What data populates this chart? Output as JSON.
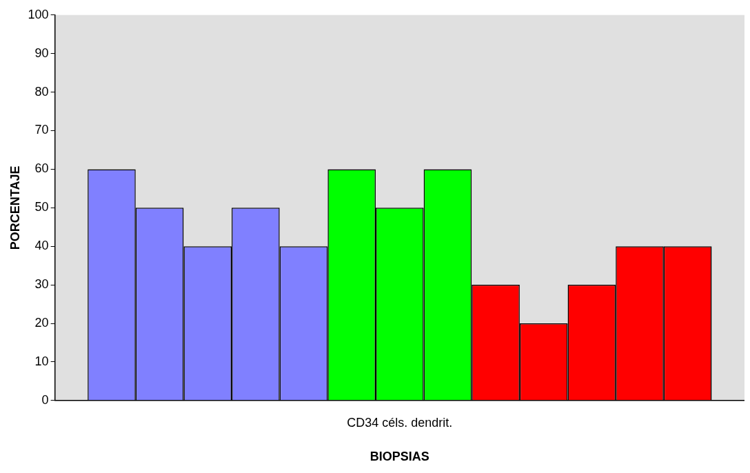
{
  "chart_data": {
    "type": "bar",
    "xlabel": "BIOPSIAS",
    "ylabel": "PORCENTAJE",
    "categories": [
      "CD34 céls. dendrit."
    ],
    "series": [
      {
        "color": "#8080ff",
        "values": [
          60
        ]
      },
      {
        "color": "#8080ff",
        "values": [
          50
        ]
      },
      {
        "color": "#8080ff",
        "values": [
          40
        ]
      },
      {
        "color": "#8080ff",
        "values": [
          50
        ]
      },
      {
        "color": "#8080ff",
        "values": [
          40
        ]
      },
      {
        "color": "#00ff00",
        "values": [
          60
        ]
      },
      {
        "color": "#00ff00",
        "values": [
          50
        ]
      },
      {
        "color": "#00ff00",
        "values": [
          60
        ]
      },
      {
        "color": "#ff0000",
        "values": [
          30
        ]
      },
      {
        "color": "#ff0000",
        "values": [
          20
        ]
      },
      {
        "color": "#ff0000",
        "values": [
          30
        ]
      },
      {
        "color": "#ff0000",
        "values": [
          40
        ]
      },
      {
        "color": "#ff0000",
        "values": [
          40
        ]
      }
    ],
    "ylim": [
      0,
      100
    ],
    "yticks": [
      0,
      10,
      20,
      30,
      40,
      50,
      60,
      70,
      80,
      90,
      100
    ]
  }
}
